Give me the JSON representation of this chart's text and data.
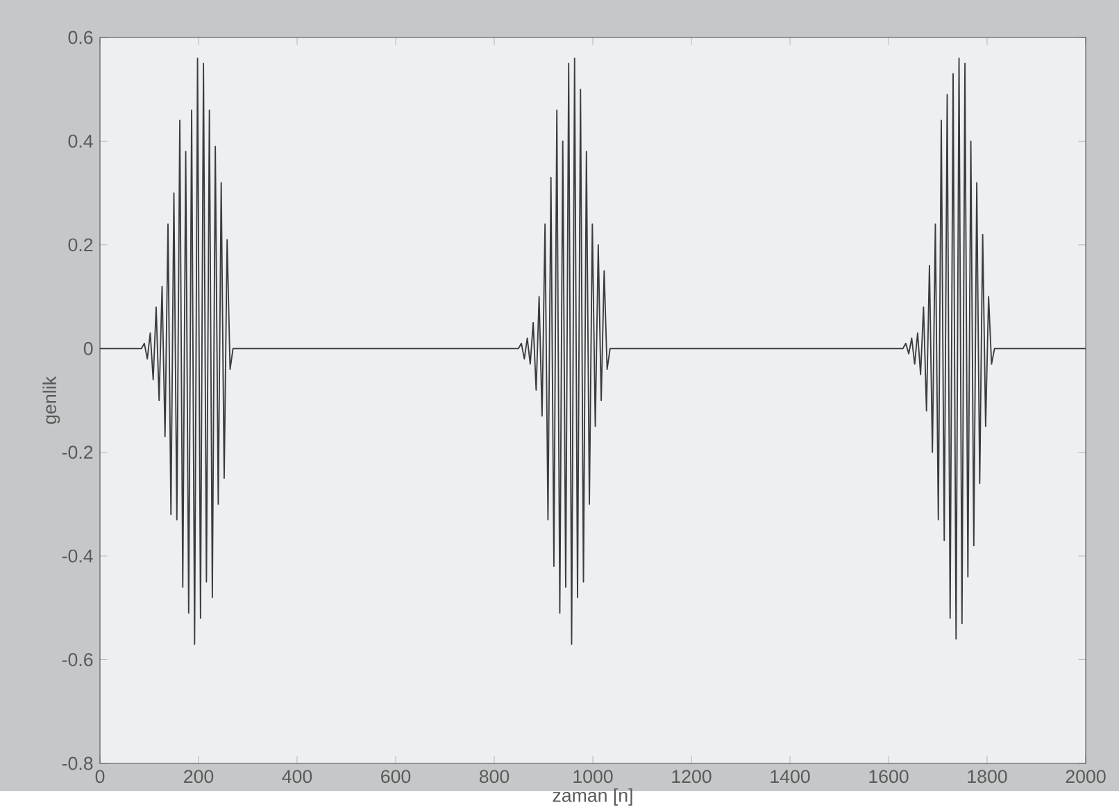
{
  "chart_data": {
    "type": "line",
    "xlabel": "zaman [n]",
    "ylabel": "genlik",
    "xlim": [
      0,
      2000
    ],
    "ylim": [
      -0.8,
      0.6
    ],
    "xticks": [
      0,
      200,
      400,
      600,
      800,
      1000,
      1200,
      1400,
      1600,
      1800,
      2000
    ],
    "yticks": [
      -0.8,
      -0.6,
      -0.4,
      -0.2,
      0,
      0.2,
      0.4,
      0.6
    ],
    "grid": false,
    "marker": "none",
    "line_style": "solid",
    "series": [
      {
        "color": "#3c3c3c",
        "x": [
          0,
          84,
          90,
          96,
          102,
          108,
          114,
          120,
          126,
          132,
          138,
          144,
          150,
          156,
          162,
          168,
          174,
          180,
          186,
          192,
          198,
          204,
          210,
          216,
          222,
          228,
          234,
          240,
          246,
          252,
          258,
          264,
          270,
          849,
          855,
          861,
          867,
          873,
          879,
          885,
          891,
          897,
          903,
          909,
          915,
          921,
          927,
          933,
          939,
          945,
          951,
          957,
          963,
          969,
          975,
          981,
          987,
          993,
          999,
          1005,
          1011,
          1017,
          1023,
          1029,
          1035,
          1629,
          1635,
          1641,
          1647,
          1653,
          1659,
          1665,
          1671,
          1677,
          1683,
          1689,
          1695,
          1701,
          1707,
          1713,
          1719,
          1725,
          1731,
          1737,
          1743,
          1749,
          1755,
          1761,
          1767,
          1773,
          1779,
          1785,
          1791,
          1797,
          1803,
          1809,
          1815,
          2000
        ],
        "values": [
          0,
          0,
          0.01,
          -0.02,
          0.03,
          -0.06,
          0.08,
          -0.1,
          0.12,
          -0.17,
          0.24,
          -0.32,
          0.3,
          -0.33,
          0.44,
          -0.46,
          0.38,
          -0.51,
          0.46,
          -0.57,
          0.56,
          -0.52,
          0.55,
          -0.45,
          0.46,
          -0.48,
          0.39,
          -0.3,
          0.32,
          -0.25,
          0.21,
          -0.04,
          0,
          0,
          0.01,
          -0.02,
          0.02,
          -0.03,
          0.05,
          -0.08,
          0.1,
          -0.13,
          0.24,
          -0.33,
          0.33,
          -0.42,
          0.46,
          -0.51,
          0.4,
          -0.46,
          0.55,
          -0.57,
          0.56,
          -0.48,
          0.5,
          -0.45,
          0.38,
          -0.3,
          0.24,
          -0.15,
          0.2,
          -0.1,
          0.15,
          -0.04,
          0,
          0,
          0.01,
          -0.01,
          0.02,
          -0.03,
          0.03,
          -0.05,
          0.08,
          -0.12,
          0.16,
          -0.2,
          0.24,
          -0.33,
          0.44,
          -0.37,
          0.49,
          -0.52,
          0.53,
          -0.56,
          0.56,
          -0.53,
          0.55,
          -0.44,
          0.4,
          -0.38,
          0.32,
          -0.26,
          0.22,
          -0.15,
          0.1,
          -0.03,
          0,
          0
        ]
      }
    ]
  }
}
